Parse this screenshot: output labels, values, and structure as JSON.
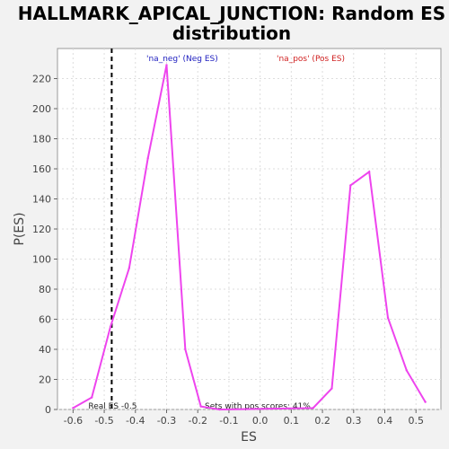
{
  "chart_data": {
    "type": "line",
    "title_line1": "HALLMARK_APICAL_JUNCTION: Random ES",
    "title_line2": "distribution",
    "xlabel": "ES",
    "ylabel": "P(ES)",
    "xlim": [
      -0.65,
      0.58
    ],
    "ylim": [
      0,
      240
    ],
    "xticks": [
      -0.6,
      -0.5,
      -0.4,
      -0.3,
      -0.2,
      -0.1,
      0.0,
      0.1,
      0.2,
      0.3,
      0.4,
      0.5
    ],
    "yticks": [
      0,
      20,
      40,
      60,
      80,
      100,
      120,
      140,
      160,
      180,
      200,
      220
    ],
    "grid": true,
    "legend": {
      "neg": "'na_neg' (Neg ES)",
      "pos": "'na_pos' (Pos ES)"
    },
    "series": [
      {
        "color": "#ee44ee",
        "x": [
          -0.6,
          -0.54,
          -0.48,
          -0.42,
          -0.36,
          -0.3,
          -0.24,
          -0.19,
          -0.13,
          0.17,
          0.23,
          0.29,
          0.35,
          0.41,
          0.47,
          0.53
        ],
        "y": [
          1,
          8,
          55,
          94,
          167,
          229,
          40,
          2,
          0,
          1,
          14,
          149,
          158,
          61,
          26,
          5
        ]
      }
    ],
    "real_es": {
      "value": -0.476,
      "label": "Real ES -0.5"
    },
    "annotation": "Sets with pos scores: 41%"
  }
}
